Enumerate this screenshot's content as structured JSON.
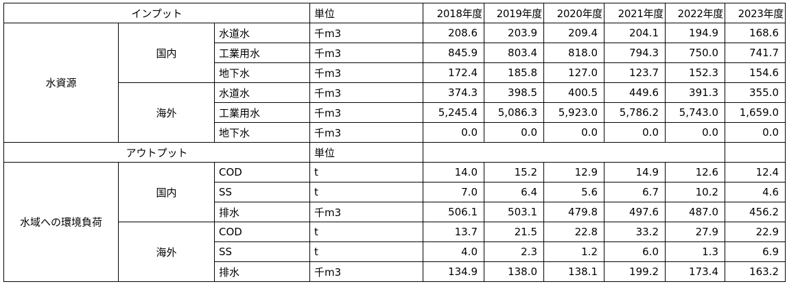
{
  "input": {
    "header": {
      "label": "インプット",
      "unit_label": "単位",
      "years": [
        "2018年度",
        "2019年度",
        "2020年度",
        "2021年度",
        "2022年度",
        "2023年度"
      ]
    },
    "category": "水資源",
    "groups": [
      {
        "name": "国内",
        "rows": [
          {
            "item": "水道水",
            "unit": "千m3",
            "values": [
              "208.6",
              "203.9",
              "209.4",
              "204.1",
              "194.9",
              "168.6"
            ]
          },
          {
            "item": "工業用水",
            "unit": "千m3",
            "values": [
              "845.9",
              "803.4",
              "818.0",
              "794.3",
              "750.0",
              "741.7"
            ]
          },
          {
            "item": "地下水",
            "unit": "千m3",
            "values": [
              "172.4",
              "185.8",
              "127.0",
              "123.7",
              "152.3",
              "154.6"
            ]
          }
        ]
      },
      {
        "name": "海外",
        "rows": [
          {
            "item": "水道水",
            "unit": "千m3",
            "values": [
              "374.3",
              "398.5",
              "400.5",
              "449.6",
              "391.3",
              "355.0"
            ]
          },
          {
            "item": "工業用水",
            "unit": "千m3",
            "values": [
              "5,245.4",
              "5,086.3",
              "5,923.0",
              "5,786.2",
              "5,743.0",
              "1,659.0"
            ]
          },
          {
            "item": "地下水",
            "unit": "千m3",
            "values": [
              "0.0",
              "0.0",
              "0.0",
              "0.0",
              "0.0",
              "0.0"
            ]
          }
        ]
      }
    ]
  },
  "output": {
    "header": {
      "label": "アウトプット",
      "unit_label": "単位"
    },
    "category": "水域への環境負荷",
    "groups": [
      {
        "name": "国内",
        "rows": [
          {
            "item": "COD",
            "unit": "t",
            "values": [
              "14.0",
              "15.2",
              "12.9",
              "14.9",
              "12.6",
              "12.4"
            ]
          },
          {
            "item": "SS",
            "unit": "t",
            "values": [
              "7.0",
              "6.4",
              "5.6",
              "6.7",
              "10.2",
              "4.6"
            ]
          },
          {
            "item": "排水",
            "unit": "千m3",
            "values": [
              "506.1",
              "503.1",
              "479.8",
              "497.6",
              "487.0",
              "456.2"
            ]
          }
        ]
      },
      {
        "name": "海外",
        "rows": [
          {
            "item": "COD",
            "unit": "t",
            "values": [
              "13.7",
              "21.5",
              "22.8",
              "33.2",
              "27.9",
              "22.9"
            ]
          },
          {
            "item": "SS",
            "unit": "t",
            "values": [
              "4.0",
              "2.3",
              "1.2",
              "6.0",
              "1.3",
              "6.9"
            ]
          },
          {
            "item": "排水",
            "unit": "千m3",
            "values": [
              "134.9",
              "138.0",
              "138.1",
              "199.2",
              "173.4",
              "163.2"
            ]
          }
        ]
      }
    ]
  }
}
